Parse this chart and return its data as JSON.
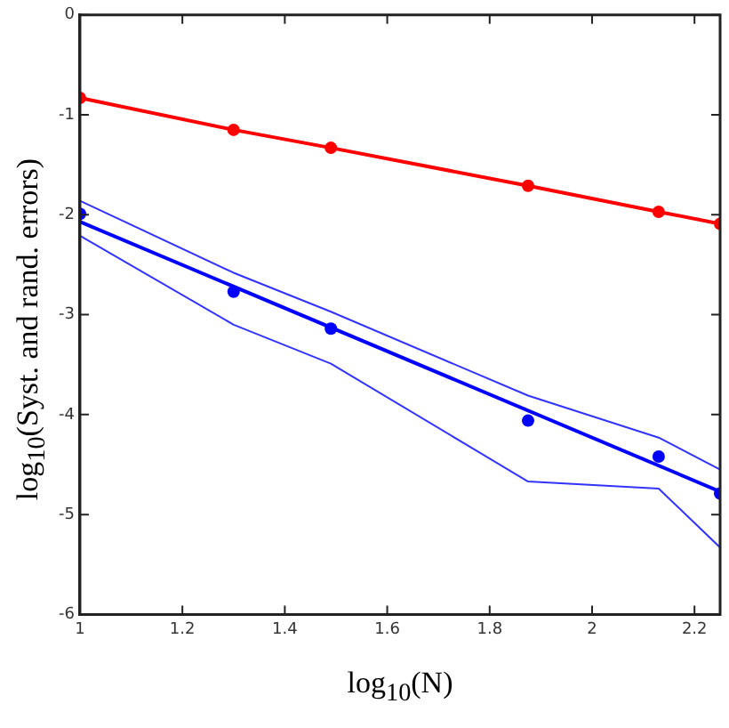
{
  "chart_data": {
    "type": "line",
    "xlabel": "log$_{10}$(N)",
    "ylabel": "log$_{10}$(Syst. and rand. errors)",
    "xlim": [
      1,
      2.25
    ],
    "xticks": [
      1,
      1.2,
      1.4,
      1.6,
      1.8,
      2,
      2.2
    ],
    "ylim": [
      -6,
      0
    ],
    "yticks": [
      -6,
      -5,
      -4,
      -3,
      -2,
      -1,
      0
    ],
    "grid": false,
    "legend": false,
    "series": [
      {
        "color": "#ff0000",
        "marker": "circle",
        "x": [
          1,
          1.3,
          1.49,
          1.875,
          2.13,
          2.25
        ],
        "values": [
          -0.83,
          -1.15,
          -1.33,
          -1.71,
          -1.97,
          -2.09
        ]
      },
      {
        "type": "scatter",
        "color": "#0000ff",
        "marker": "circle",
        "x": [
          1,
          1.3,
          1.49,
          1.875,
          2.13,
          2.25
        ],
        "values": [
          -1.99,
          -2.77,
          -3.14,
          -4.06,
          -4.42,
          -4.79
        ]
      },
      {
        "color": "#0000ff",
        "marker": "none",
        "x": [
          1,
          2.25
        ],
        "values": [
          -2.07,
          -4.77
        ]
      },
      {
        "color": "#3333ff",
        "marker": "none",
        "x": [
          1,
          1.3,
          1.49,
          1.875,
          2.13,
          2.25
        ],
        "values": [
          -1.86,
          -2.58,
          -2.97,
          -3.81,
          -4.23,
          -4.55
        ]
      },
      {
        "color": "#3333ff",
        "marker": "none",
        "x": [
          1,
          1.3,
          1.49,
          1.875,
          2.13,
          2.25
        ],
        "values": [
          -2.21,
          -3.1,
          -3.49,
          -4.67,
          -4.74,
          -5.33
        ]
      }
    ]
  }
}
